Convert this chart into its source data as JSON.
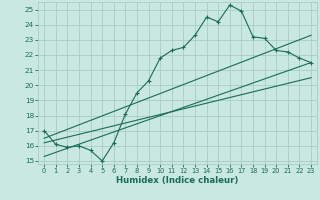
{
  "title": "",
  "xlabel": "Humidex (Indice chaleur)",
  "ylabel": "",
  "xlim": [
    -0.5,
    23.5
  ],
  "ylim": [
    14.8,
    25.5
  ],
  "yticks": [
    15,
    16,
    17,
    18,
    19,
    20,
    21,
    22,
    23,
    24,
    25
  ],
  "xticks": [
    0,
    1,
    2,
    3,
    4,
    5,
    6,
    7,
    8,
    9,
    10,
    11,
    12,
    13,
    14,
    15,
    16,
    17,
    18,
    19,
    20,
    21,
    22,
    23
  ],
  "bg_color": "#c8e8e0",
  "grid_color": "#a8ccc4",
  "line_color": "#1a6b5a",
  "main_x": [
    0,
    1,
    2,
    3,
    4,
    5,
    6,
    7,
    8,
    9,
    10,
    11,
    12,
    13,
    14,
    15,
    16,
    17,
    18,
    19,
    20,
    21,
    22,
    23
  ],
  "main_y": [
    17.0,
    16.1,
    15.9,
    16.0,
    15.7,
    15.0,
    16.2,
    18.1,
    19.5,
    20.3,
    21.8,
    22.3,
    22.5,
    23.3,
    24.5,
    24.2,
    25.3,
    24.9,
    23.2,
    23.1,
    22.3,
    22.2,
    21.8,
    21.5
  ],
  "line1_x": [
    0,
    23
  ],
  "line1_y": [
    16.5,
    23.3
  ],
  "line2_x": [
    0,
    23
  ],
  "line2_y": [
    15.3,
    21.5
  ],
  "line3_x": [
    0,
    23
  ],
  "line3_y": [
    16.2,
    20.5
  ]
}
